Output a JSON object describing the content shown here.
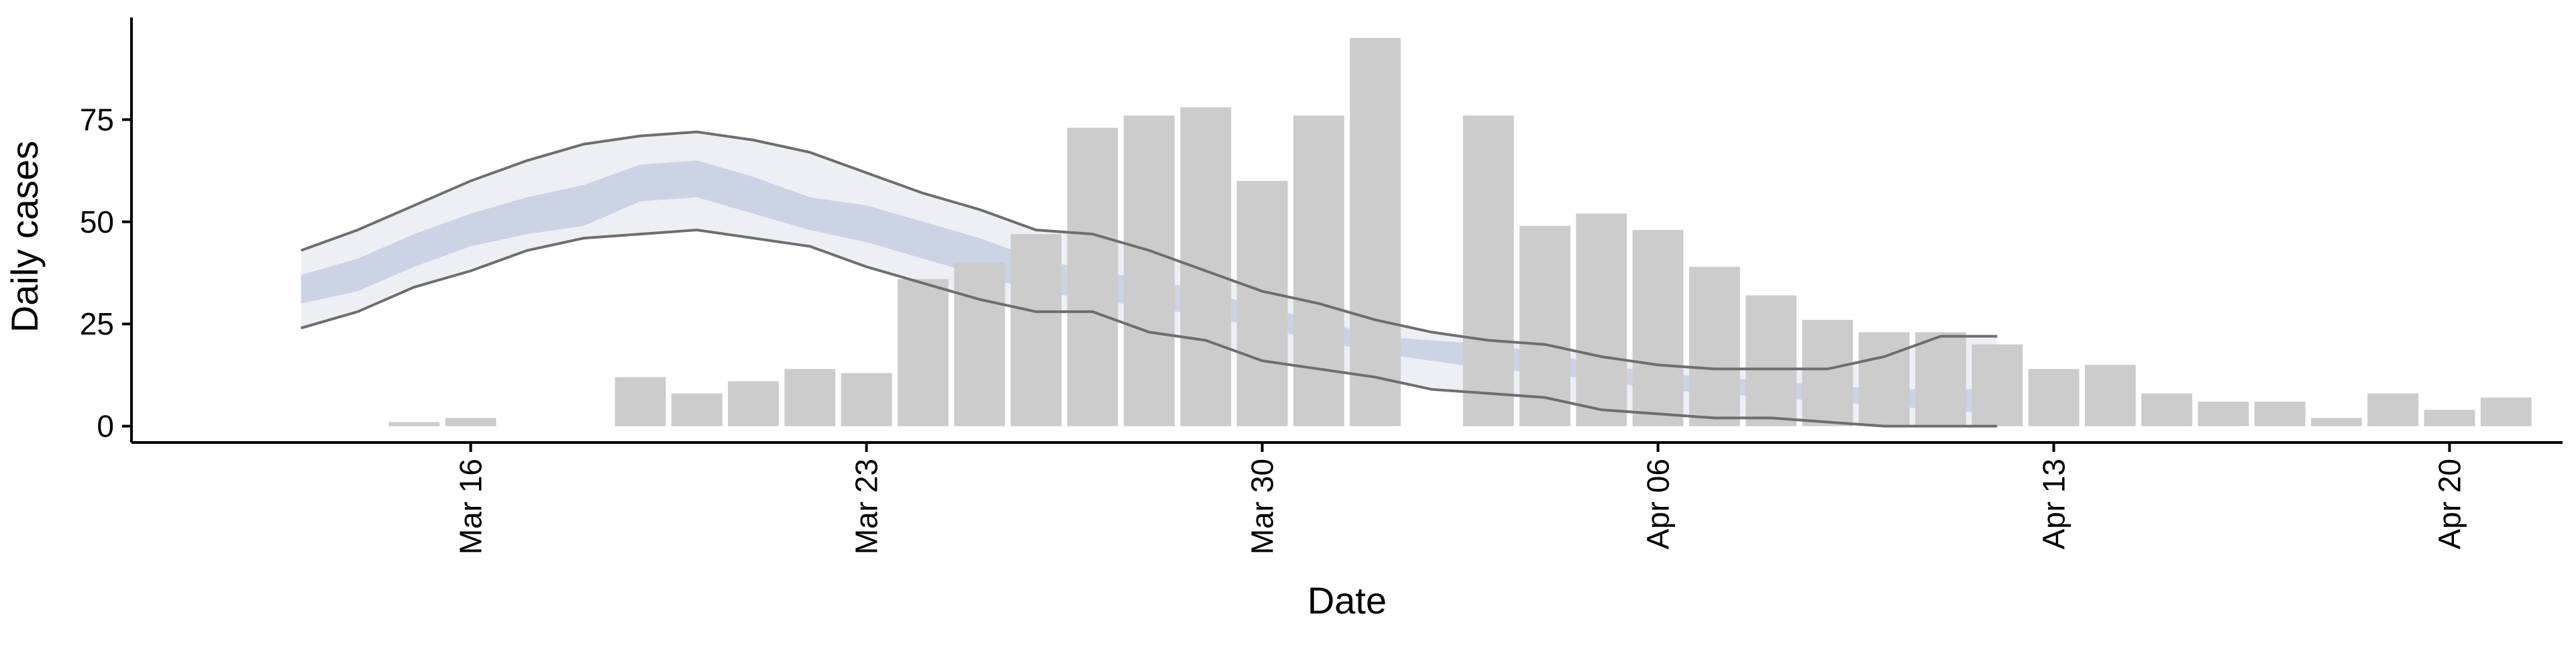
{
  "chart_data": {
    "type": "bar",
    "title": "",
    "xlabel": "Date",
    "ylabel": "Daily cases",
    "x_range": [
      "2020-03-10",
      "2020-04-22"
    ],
    "ylim": [
      -4,
      100
    ],
    "y_ticks": [
      0,
      25,
      50,
      75
    ],
    "x_ticks": [
      {
        "date": "2020-03-16",
        "label": "Mar 16"
      },
      {
        "date": "2020-03-23",
        "label": "Mar 23"
      },
      {
        "date": "2020-03-30",
        "label": "Mar 30"
      },
      {
        "date": "2020-04-06",
        "label": "Apr 06"
      },
      {
        "date": "2020-04-13",
        "label": "Apr 13"
      },
      {
        "date": "2020-04-20",
        "label": "Apr 20"
      }
    ],
    "grid": false,
    "colors": {
      "bars": "#cccccc",
      "band_outer": "#e8e9f0",
      "band_inner": "#b5bfd8",
      "bound_lines": "#6e6e6e"
    },
    "bars": [
      {
        "date": "2020-03-15",
        "value": 1
      },
      {
        "date": "2020-03-16",
        "value": 2
      },
      {
        "date": "2020-03-19",
        "value": 12
      },
      {
        "date": "2020-03-20",
        "value": 8
      },
      {
        "date": "2020-03-21",
        "value": 11
      },
      {
        "date": "2020-03-22",
        "value": 14
      },
      {
        "date": "2020-03-23",
        "value": 13
      },
      {
        "date": "2020-03-24",
        "value": 36
      },
      {
        "date": "2020-03-25",
        "value": 40
      },
      {
        "date": "2020-03-26",
        "value": 47
      },
      {
        "date": "2020-03-27",
        "value": 73
      },
      {
        "date": "2020-03-28",
        "value": 76
      },
      {
        "date": "2020-03-29",
        "value": 78
      },
      {
        "date": "2020-03-30",
        "value": 60
      },
      {
        "date": "2020-03-31",
        "value": 76
      },
      {
        "date": "2020-04-01",
        "value": 95
      },
      {
        "date": "2020-04-03",
        "value": 76
      },
      {
        "date": "2020-04-04",
        "value": 49
      },
      {
        "date": "2020-04-05",
        "value": 52
      },
      {
        "date": "2020-04-06",
        "value": 48
      },
      {
        "date": "2020-04-07",
        "value": 39
      },
      {
        "date": "2020-04-08",
        "value": 32
      },
      {
        "date": "2020-04-09",
        "value": 26
      },
      {
        "date": "2020-04-10",
        "value": 23
      },
      {
        "date": "2020-04-11",
        "value": 23
      },
      {
        "date": "2020-04-12",
        "value": 20
      },
      {
        "date": "2020-04-13",
        "value": 14
      },
      {
        "date": "2020-04-14",
        "value": 15
      },
      {
        "date": "2020-04-15",
        "value": 8
      },
      {
        "date": "2020-04-16",
        "value": 6
      },
      {
        "date": "2020-04-17",
        "value": 6
      },
      {
        "date": "2020-04-18",
        "value": 2
      },
      {
        "date": "2020-04-19",
        "value": 8
      },
      {
        "date": "2020-04-20",
        "value": 4
      },
      {
        "date": "2020-04-21",
        "value": 7
      }
    ],
    "estimate": {
      "dates": [
        "2020-03-13",
        "2020-03-14",
        "2020-03-15",
        "2020-03-16",
        "2020-03-17",
        "2020-03-18",
        "2020-03-19",
        "2020-03-20",
        "2020-03-21",
        "2020-03-22",
        "2020-03-23",
        "2020-03-24",
        "2020-03-25",
        "2020-03-26",
        "2020-03-27",
        "2020-03-28",
        "2020-03-29",
        "2020-03-30",
        "2020-03-31",
        "2020-04-01",
        "2020-04-02",
        "2020-04-03",
        "2020-04-04",
        "2020-04-05",
        "2020-04-06",
        "2020-04-07",
        "2020-04-08",
        "2020-04-09",
        "2020-04-10",
        "2020-04-11",
        "2020-04-12"
      ],
      "outer_upper": [
        43,
        48,
        54,
        60,
        65,
        69,
        71,
        72,
        70,
        67,
        62,
        57,
        53,
        48,
        47,
        43,
        38,
        33,
        30,
        26,
        23,
        21,
        20,
        17,
        15,
        14,
        14,
        14,
        17,
        22,
        22
      ],
      "inner_upper": [
        37,
        41,
        47,
        52,
        56,
        59,
        64,
        65,
        61,
        56,
        54,
        50,
        46,
        41,
        38,
        36,
        33,
        29,
        26,
        22,
        21,
        20,
        18,
        15,
        13,
        12,
        11,
        10,
        9,
        9,
        9
      ],
      "inner_lower": [
        30,
        33,
        39,
        44,
        47,
        49,
        55,
        56,
        52,
        48,
        45,
        41,
        37,
        33,
        31,
        29,
        27,
        24,
        21,
        18,
        16,
        14,
        13,
        11,
        9,
        8,
        7,
        6,
        5,
        4,
        3
      ],
      "outer_lower": [
        24,
        28,
        34,
        38,
        43,
        46,
        47,
        48,
        46,
        44,
        39,
        35,
        31,
        28,
        28,
        23,
        21,
        16,
        14,
        12,
        9,
        8,
        7,
        4,
        3,
        2,
        2,
        1,
        0,
        0,
        0
      ]
    }
  }
}
